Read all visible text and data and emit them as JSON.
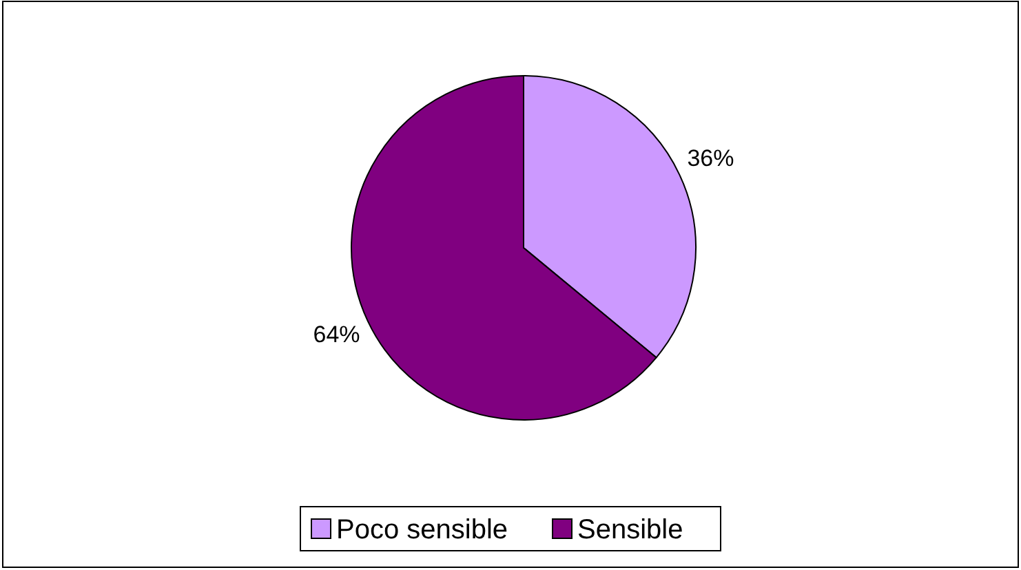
{
  "chart_data": {
    "type": "pie",
    "categories": [
      "Poco sensible",
      "Sensible"
    ],
    "values": [
      36,
      64
    ],
    "value_labels": [
      "36%",
      "64%"
    ],
    "colors": [
      "#cc99ff",
      "#800080"
    ],
    "legend": "bottom"
  }
}
